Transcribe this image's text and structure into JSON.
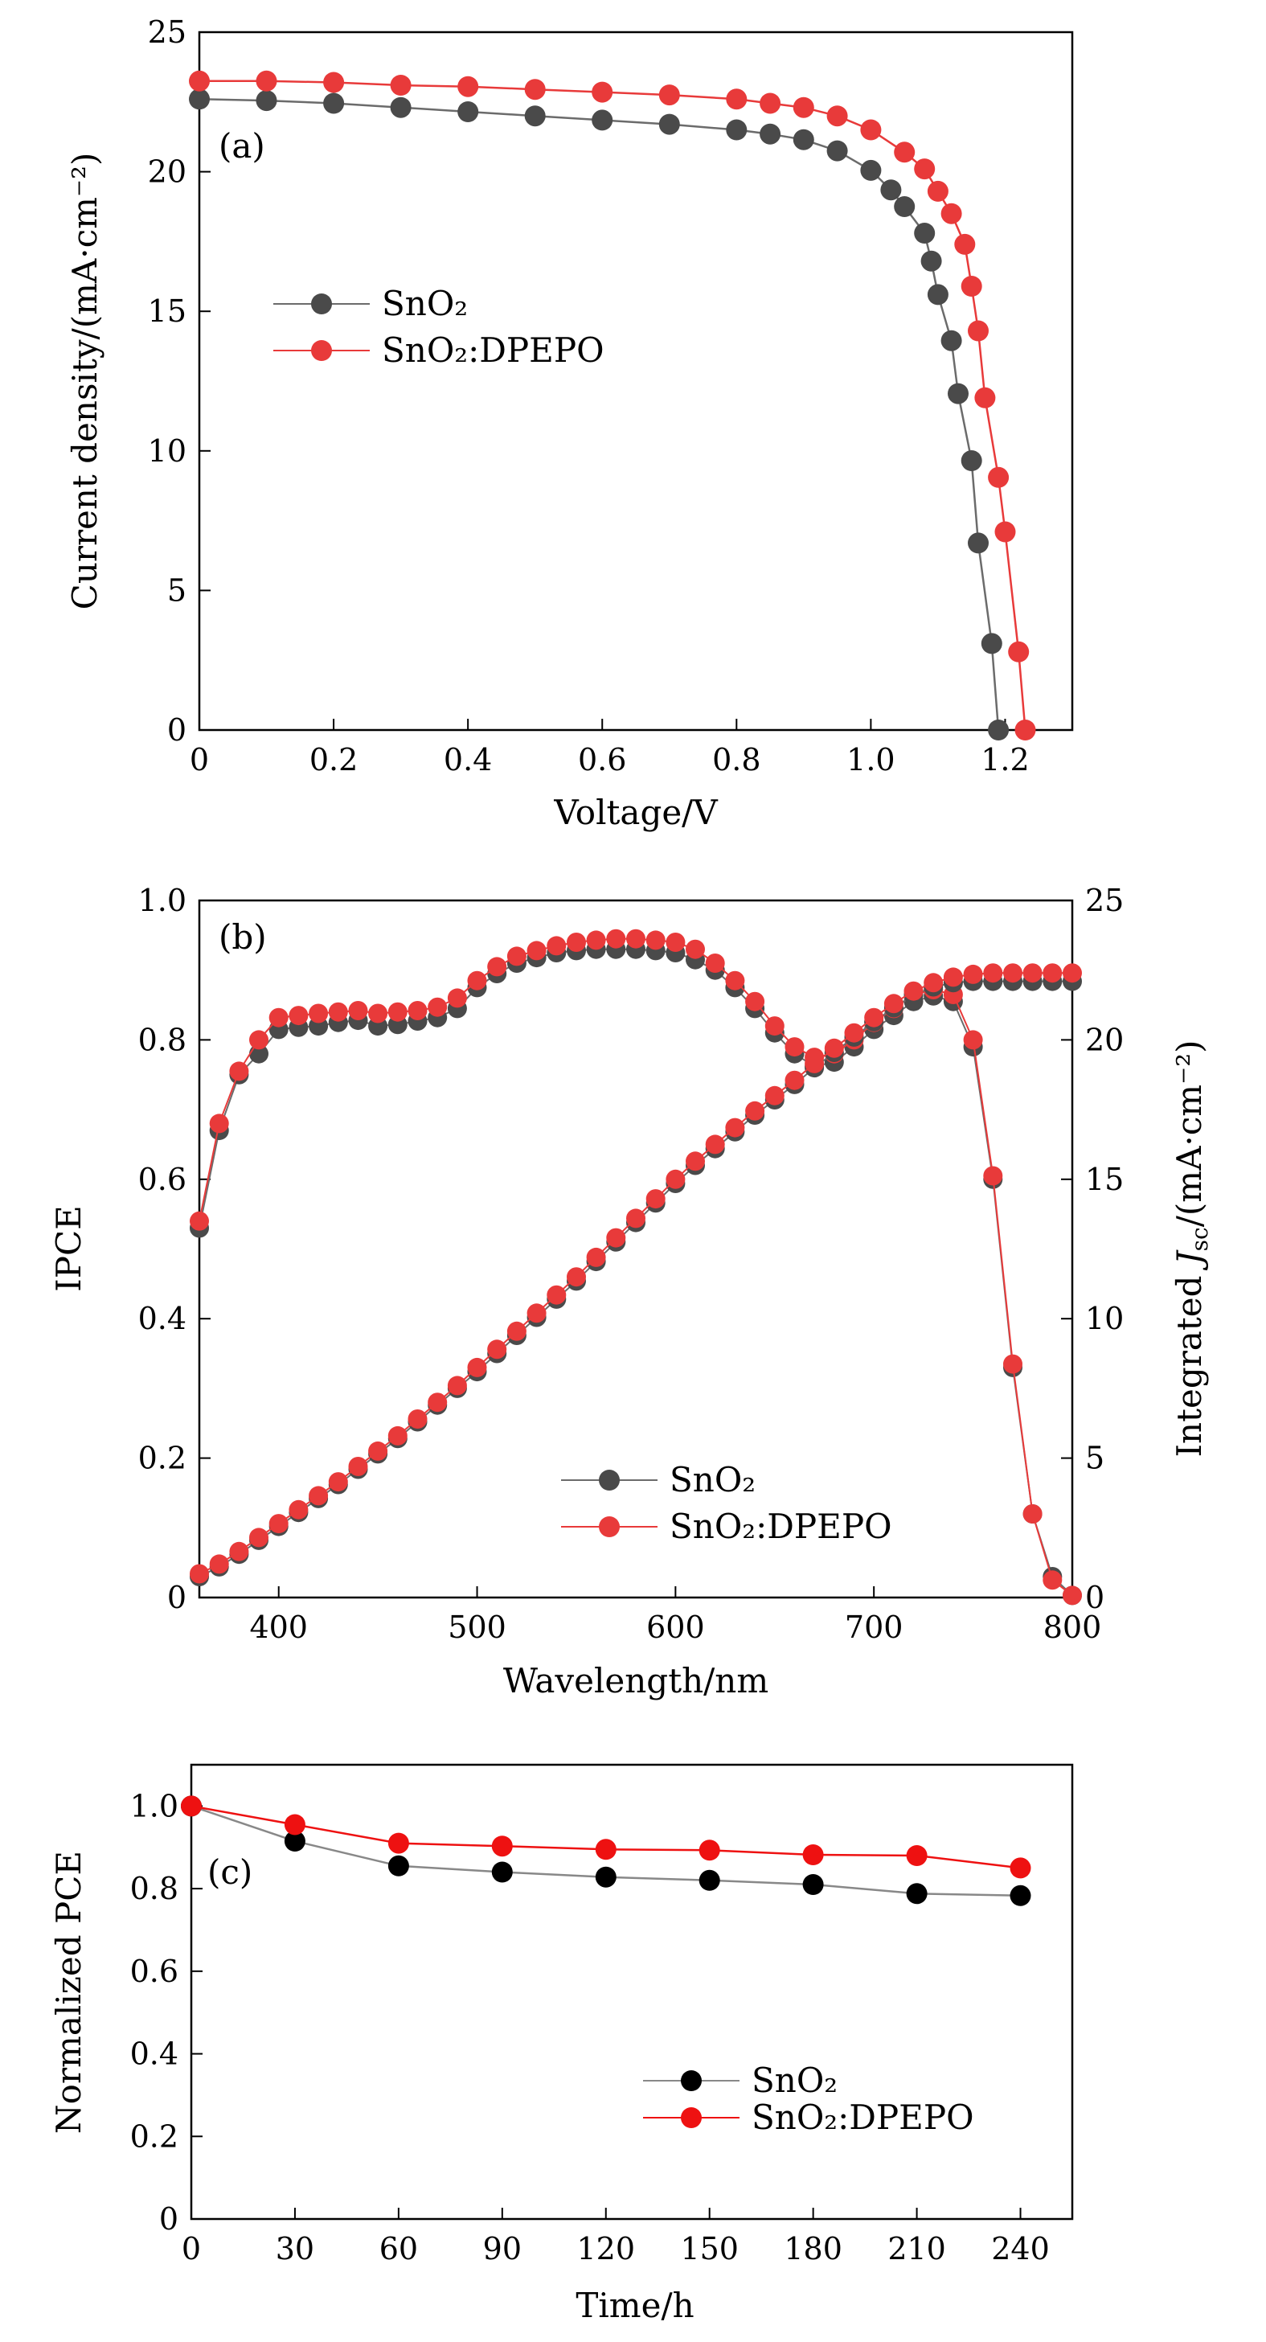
{
  "colors": {
    "sno2": "#4a4a4a",
    "dpepo": "#e83a3a",
    "sno2_c": "#000000",
    "dpepo_c": "#ee1111",
    "sno2_line_c": "#888888"
  },
  "chart_data": [
    {
      "type": "line",
      "panel": "(a)",
      "title": "",
      "xlabel": "Voltage/V",
      "ylabel": "Current density/(mA·cm⁻²)",
      "xlim": [
        0,
        1.3
      ],
      "ylim": [
        0,
        25
      ],
      "xticks": [
        "0",
        "0.2",
        "0.4",
        "0.6",
        "0.8",
        "1.0",
        "1.2"
      ],
      "yticks": [
        "0",
        "5",
        "10",
        "15",
        "20",
        "25"
      ],
      "legend": [
        "SnO₂",
        "SnO₂:DPEPO"
      ],
      "legend_position": "middle-left",
      "series": [
        {
          "name": "SnO₂",
          "key": "sno2",
          "points": [
            [
              0,
              22.6
            ],
            [
              0.1,
              22.55
            ],
            [
              0.2,
              22.45
            ],
            [
              0.3,
              22.3
            ],
            [
              0.4,
              22.15
            ],
            [
              0.5,
              22.0
            ],
            [
              0.6,
              21.85
            ],
            [
              0.7,
              21.7
            ],
            [
              0.8,
              21.5
            ],
            [
              0.85,
              21.35
            ],
            [
              0.9,
              21.15
            ],
            [
              0.95,
              20.75
            ],
            [
              1.0,
              20.05
            ],
            [
              1.03,
              19.35
            ],
            [
              1.05,
              18.75
            ],
            [
              1.08,
              17.8
            ],
            [
              1.09,
              16.8
            ],
            [
              1.1,
              15.6
            ],
            [
              1.12,
              13.95
            ],
            [
              1.13,
              12.05
            ],
            [
              1.15,
              9.65
            ],
            [
              1.16,
              6.7
            ],
            [
              1.18,
              3.1
            ],
            [
              1.19,
              0
            ]
          ]
        },
        {
          "name": "SnO₂:DPEPO",
          "key": "dpepo",
          "points": [
            [
              0,
              23.25
            ],
            [
              0.1,
              23.25
            ],
            [
              0.2,
              23.2
            ],
            [
              0.3,
              23.1
            ],
            [
              0.4,
              23.05
            ],
            [
              0.5,
              22.95
            ],
            [
              0.6,
              22.85
            ],
            [
              0.7,
              22.75
            ],
            [
              0.8,
              22.6
            ],
            [
              0.85,
              22.45
            ],
            [
              0.9,
              22.3
            ],
            [
              0.95,
              22.0
            ],
            [
              1.0,
              21.5
            ],
            [
              1.05,
              20.7
            ],
            [
              1.08,
              20.1
            ],
            [
              1.1,
              19.3
            ],
            [
              1.12,
              18.5
            ],
            [
              1.14,
              17.4
            ],
            [
              1.15,
              15.9
            ],
            [
              1.16,
              14.3
            ],
            [
              1.17,
              11.9
            ],
            [
              1.19,
              9.05
            ],
            [
              1.2,
              7.1
            ],
            [
              1.22,
              2.8
            ],
            [
              1.23,
              0
            ]
          ]
        }
      ]
    },
    {
      "type": "line",
      "panel": "(b)",
      "title": "",
      "xlabel": "Wavelength/nm",
      "ylabel": "IPCE",
      "ylabel_right_pre": "Integrated ",
      "ylabel_right_J": "J",
      "ylabel_right_sub": "sc",
      "ylabel_right_post": "/(mA·cm⁻²)",
      "xlim": [
        360,
        800
      ],
      "ylim": [
        0,
        1.0
      ],
      "ylim_right": [
        0,
        25
      ],
      "xticks": [
        "400",
        "500",
        "600",
        "700",
        "800"
      ],
      "yticks": [
        "0",
        "0.2",
        "0.4",
        "0.6",
        "0.8",
        "1.0"
      ],
      "yticks_right": [
        "0",
        "5",
        "10",
        "15",
        "20",
        "25"
      ],
      "legend": [
        "SnO₂",
        "SnO₂:DPEPO"
      ],
      "legend_position": "bottom-center",
      "series": [
        {
          "name": "SnO₂ IPCE",
          "key": "sno2",
          "axis": "left",
          "x": [
            360,
            370,
            380,
            390,
            400,
            410,
            420,
            430,
            440,
            450,
            460,
            470,
            480,
            490,
            500,
            510,
            520,
            530,
            540,
            550,
            560,
            570,
            580,
            590,
            600,
            610,
            620,
            630,
            640,
            650,
            660,
            670,
            680,
            690,
            700,
            710,
            720,
            730,
            740,
            750,
            760,
            770,
            780,
            790,
            800
          ],
          "y": [
            0.53,
            0.67,
            0.75,
            0.78,
            0.815,
            0.818,
            0.82,
            0.825,
            0.828,
            0.82,
            0.822,
            0.827,
            0.832,
            0.845,
            0.875,
            0.895,
            0.91,
            0.918,
            0.925,
            0.928,
            0.93,
            0.93,
            0.93,
            0.928,
            0.925,
            0.915,
            0.9,
            0.875,
            0.845,
            0.81,
            0.78,
            0.762,
            0.768,
            0.79,
            0.815,
            0.835,
            0.855,
            0.863,
            0.855,
            0.79,
            0.6,
            0.33,
            0.12,
            0.03,
            0.003
          ]
        },
        {
          "name": "SnO₂:DPEPO IPCE",
          "key": "dpepo",
          "axis": "left",
          "x": [
            360,
            370,
            380,
            390,
            400,
            410,
            420,
            430,
            440,
            450,
            460,
            470,
            480,
            490,
            500,
            510,
            520,
            530,
            540,
            550,
            560,
            570,
            580,
            590,
            600,
            610,
            620,
            630,
            640,
            650,
            660,
            670,
            680,
            690,
            700,
            710,
            720,
            730,
            740,
            750,
            760,
            770,
            780,
            790,
            800
          ],
          "y": [
            0.54,
            0.68,
            0.755,
            0.8,
            0.832,
            0.835,
            0.838,
            0.84,
            0.842,
            0.838,
            0.84,
            0.842,
            0.847,
            0.86,
            0.885,
            0.905,
            0.92,
            0.928,
            0.935,
            0.94,
            0.943,
            0.945,
            0.945,
            0.943,
            0.94,
            0.93,
            0.91,
            0.885,
            0.855,
            0.82,
            0.79,
            0.775,
            0.78,
            0.8,
            0.825,
            0.845,
            0.865,
            0.872,
            0.865,
            0.8,
            0.605,
            0.335,
            0.12,
            0.025,
            0.003
          ]
        },
        {
          "name": "SnO₂ Integrated Jsc",
          "key": "sno2",
          "axis": "right",
          "x": [
            360,
            370,
            380,
            390,
            400,
            410,
            420,
            430,
            440,
            450,
            460,
            470,
            480,
            490,
            500,
            510,
            520,
            530,
            540,
            550,
            560,
            570,
            580,
            590,
            600,
            610,
            620,
            630,
            640,
            650,
            660,
            670,
            680,
            690,
            700,
            710,
            720,
            730,
            740,
            750,
            760,
            770,
            780,
            790,
            800
          ],
          "y": [
            0.75,
            1.1,
            1.55,
            2.05,
            2.55,
            3.05,
            3.55,
            4.05,
            4.6,
            5.15,
            5.7,
            6.3,
            6.9,
            7.5,
            8.1,
            8.75,
            9.4,
            10.05,
            10.7,
            11.35,
            12.05,
            12.75,
            13.45,
            14.15,
            14.85,
            15.5,
            16.1,
            16.7,
            17.3,
            17.85,
            18.4,
            19.0,
            19.55,
            20.1,
            20.65,
            21.15,
            21.6,
            21.9,
            22.05,
            22.1,
            22.1,
            22.1,
            22.1,
            22.1,
            22.1
          ]
        },
        {
          "name": "SnO₂:DPEPO Integrated Jsc",
          "key": "dpepo",
          "axis": "right",
          "x": [
            360,
            370,
            380,
            390,
            400,
            410,
            420,
            430,
            440,
            450,
            460,
            470,
            480,
            490,
            500,
            510,
            520,
            530,
            540,
            550,
            560,
            570,
            580,
            590,
            600,
            610,
            620,
            630,
            640,
            650,
            660,
            670,
            680,
            690,
            700,
            710,
            720,
            730,
            740,
            750,
            760,
            770,
            780,
            790,
            800
          ],
          "y": [
            0.85,
            1.2,
            1.65,
            2.15,
            2.65,
            3.15,
            3.65,
            4.15,
            4.7,
            5.25,
            5.8,
            6.4,
            7.0,
            7.6,
            8.25,
            8.9,
            9.55,
            10.2,
            10.85,
            11.5,
            12.2,
            12.9,
            13.6,
            14.3,
            15.0,
            15.65,
            16.25,
            16.85,
            17.45,
            18.0,
            18.55,
            19.15,
            19.7,
            20.25,
            20.8,
            21.3,
            21.75,
            22.05,
            22.25,
            22.35,
            22.4,
            22.4,
            22.4,
            22.4,
            22.4
          ]
        }
      ]
    },
    {
      "type": "line",
      "panel": "(c)",
      "title": "",
      "xlabel": "Time/h",
      "ylabel": "Normalized PCE",
      "xlim": [
        0,
        255
      ],
      "ylim": [
        0,
        1.1
      ],
      "xticks": [
        "0",
        "30",
        "60",
        "90",
        "120",
        "150",
        "180",
        "210",
        "240"
      ],
      "yticks": [
        "0",
        "0.2",
        "0.4",
        "0.6",
        "0.8",
        "1.0"
      ],
      "legend": [
        "SnO₂",
        "SnO₂:DPEPO"
      ],
      "legend_position": "bottom-right",
      "series": [
        {
          "name": "SnO₂",
          "key": "sno2_c",
          "points": [
            [
              0,
              1.0
            ],
            [
              30,
              0.915
            ],
            [
              60,
              0.855
            ],
            [
              90,
              0.84
            ],
            [
              120,
              0.828
            ],
            [
              150,
              0.82
            ],
            [
              180,
              0.81
            ],
            [
              210,
              0.788
            ],
            [
              240,
              0.783
            ]
          ]
        },
        {
          "name": "SnO₂:DPEPO",
          "key": "dpepo_c",
          "points": [
            [
              0,
              1.0
            ],
            [
              30,
              0.955
            ],
            [
              60,
              0.91
            ],
            [
              90,
              0.903
            ],
            [
              120,
              0.895
            ],
            [
              150,
              0.893
            ],
            [
              180,
              0.882
            ],
            [
              210,
              0.88
            ],
            [
              240,
              0.85
            ]
          ]
        }
      ]
    }
  ]
}
